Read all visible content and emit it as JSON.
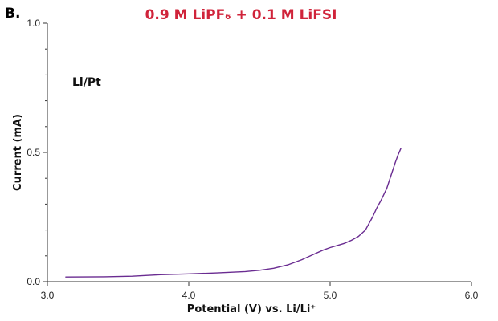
{
  "chart_data": {
    "type": "line",
    "panel_label": "B.",
    "title": "0.9 M LiPF₆ + 0.1 M LiFSI",
    "title_color": "#d0233a",
    "annotation": "Li/Pt",
    "xlabel": "Potential (V) vs. Li/Li⁺",
    "ylabel": "Current (mA)",
    "xlim": [
      3.0,
      6.0
    ],
    "ylim": [
      0.0,
      1.0
    ],
    "x_ticks": [
      3.0,
      4.0,
      5.0,
      6.0
    ],
    "x_tick_labels": [
      "3.0",
      "4.0",
      "5.0",
      "6.0"
    ],
    "y_ticks": [
      0.0,
      0.5,
      1.0
    ],
    "y_tick_labels": [
      "0.0",
      "0.5",
      "1.0"
    ],
    "y_minor_ticks": [
      0.1,
      0.2,
      0.3,
      0.4,
      0.6,
      0.7,
      0.8,
      0.9
    ],
    "grid": false,
    "series": [
      {
        "color": "#6a2c91",
        "x": [
          3.13,
          3.4,
          3.6,
          3.8,
          4.0,
          4.2,
          4.4,
          4.5,
          4.6,
          4.7,
          4.8,
          4.9,
          4.95,
          5.0,
          5.05,
          5.1,
          5.15,
          5.2,
          5.25,
          5.3,
          5.33,
          5.36,
          5.4,
          5.43,
          5.46,
          5.48,
          5.5
        ],
        "y": [
          0.018,
          0.019,
          0.021,
          0.027,
          0.03,
          0.034,
          0.039,
          0.044,
          0.052,
          0.065,
          0.085,
          0.11,
          0.122,
          0.132,
          0.14,
          0.148,
          0.16,
          0.175,
          0.2,
          0.25,
          0.285,
          0.315,
          0.36,
          0.41,
          0.46,
          0.49,
          0.515
        ]
      }
    ]
  }
}
